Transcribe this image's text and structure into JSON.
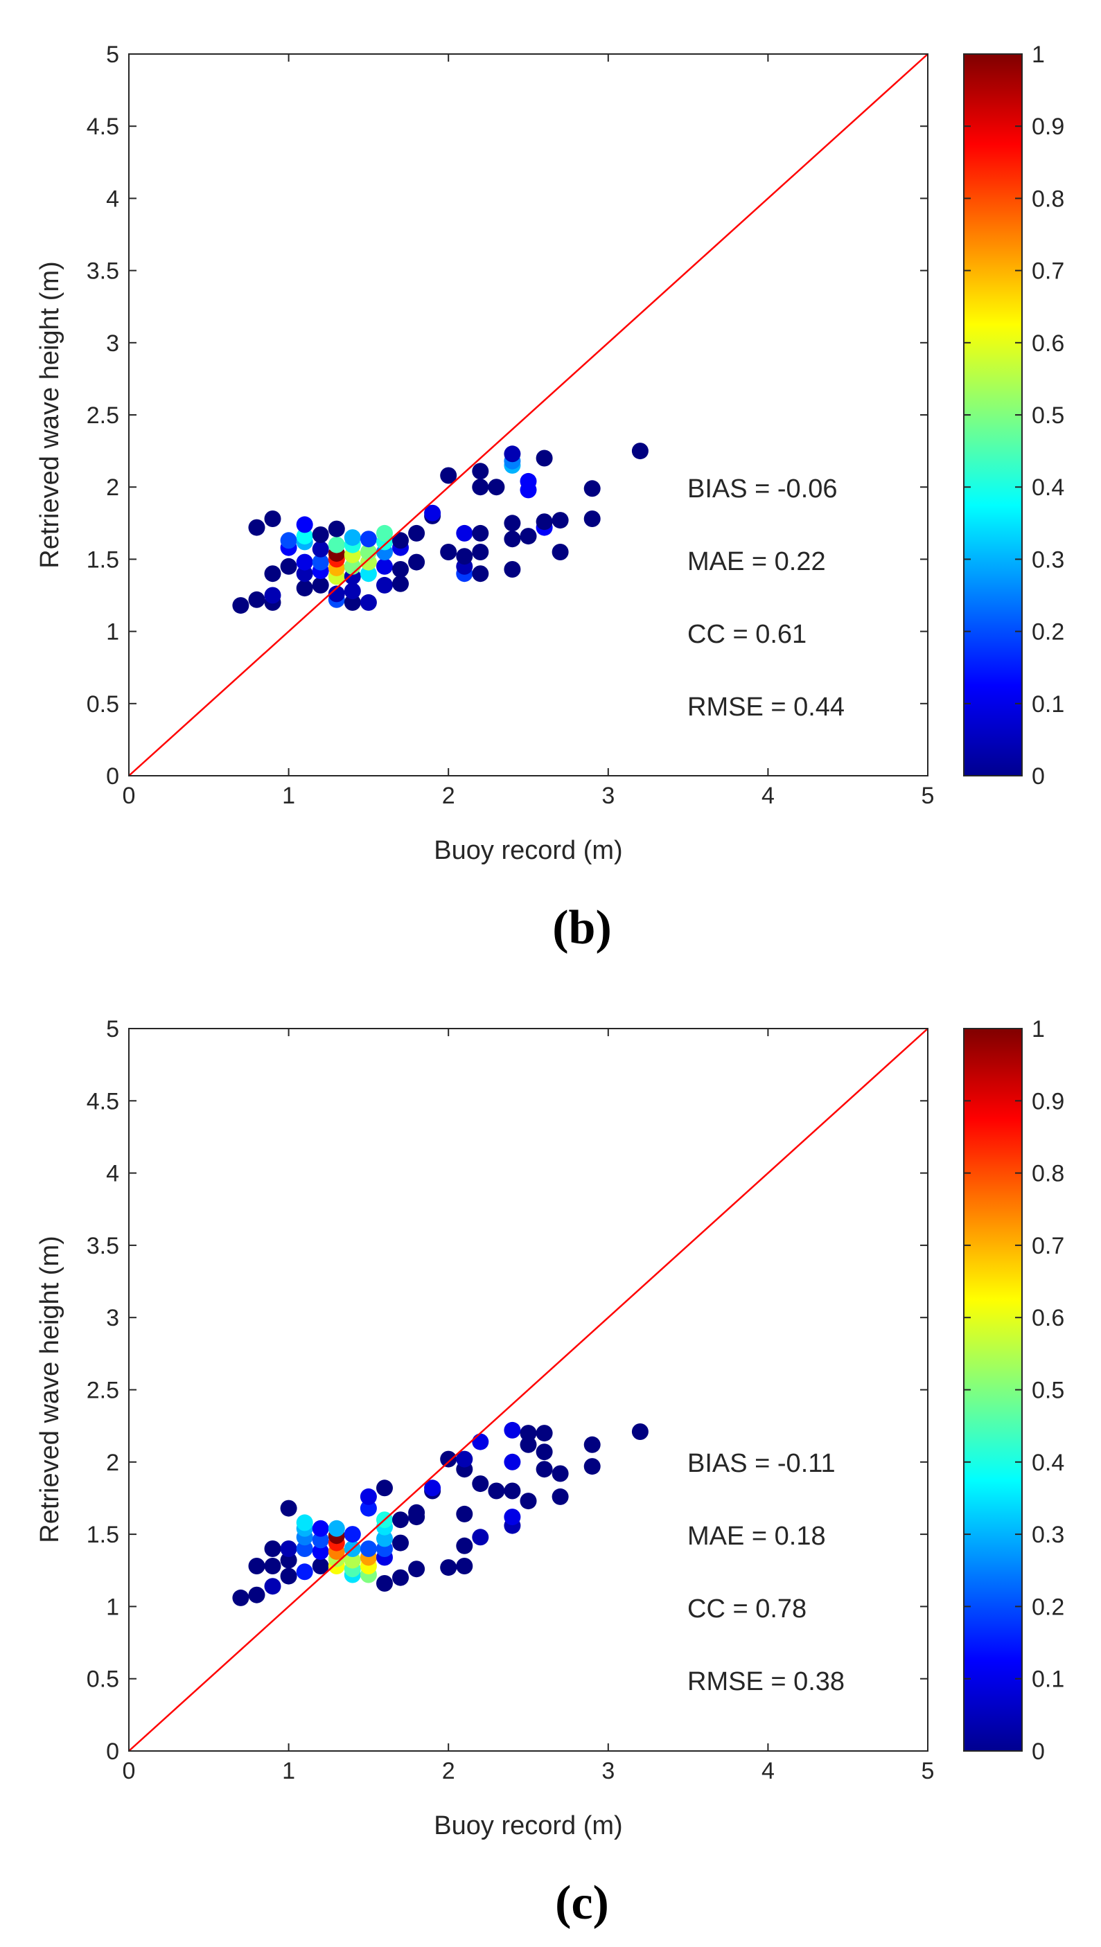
{
  "colors": {
    "axis": "#262626",
    "identity_line": "#ff0000",
    "background": "#ffffff"
  },
  "colorbar": {
    "range": [
      0,
      1
    ],
    "ticks": [
      "0",
      "0.1",
      "0.2",
      "0.3",
      "0.4",
      "0.5",
      "0.6",
      "0.7",
      "0.8",
      "0.9",
      "1"
    ],
    "colormap": "jet"
  },
  "chart_data": [
    {
      "type": "scatter",
      "panel_label": "(b)",
      "xlabel": "Buoy record (m)",
      "ylabel": "Retrieved wave height (m)",
      "xlim": [
        0,
        5
      ],
      "ylim": [
        0,
        5
      ],
      "xticks": [
        "0",
        "1",
        "2",
        "3",
        "4",
        "5"
      ],
      "yticks": [
        "0",
        "0.5",
        "1",
        "1.5",
        "2",
        "2.5",
        "3",
        "3.5",
        "4",
        "4.5",
        "5"
      ],
      "identity_line": true,
      "grid": false,
      "stats": [
        "BIAS = -0.06",
        "MAE = 0.22",
        "CC = 0.61",
        "RMSE = 0.44"
      ],
      "points": [
        [
          0.7,
          1.18,
          0
        ],
        [
          0.8,
          1.22,
          0
        ],
        [
          0.8,
          1.72,
          0
        ],
        [
          0.9,
          1.2,
          0
        ],
        [
          0.9,
          1.25,
          0.05
        ],
        [
          0.9,
          1.4,
          0
        ],
        [
          0.9,
          1.78,
          0
        ],
        [
          1.0,
          1.45,
          0
        ],
        [
          1.0,
          1.58,
          0.12
        ],
        [
          1.0,
          1.63,
          0.2
        ],
        [
          1.1,
          1.3,
          0
        ],
        [
          1.1,
          1.4,
          0.05
        ],
        [
          1.1,
          1.48,
          0.1
        ],
        [
          1.1,
          1.62,
          0.3
        ],
        [
          1.1,
          1.66,
          0.38
        ],
        [
          1.1,
          1.74,
          0.12
        ],
        [
          1.2,
          1.32,
          0
        ],
        [
          1.2,
          1.42,
          0.12
        ],
        [
          1.2,
          1.48,
          0.2
        ],
        [
          1.2,
          1.57,
          0.05
        ],
        [
          1.2,
          1.67,
          0
        ],
        [
          1.3,
          1.22,
          0.2
        ],
        [
          1.3,
          1.26,
          0.05
        ],
        [
          1.3,
          1.38,
          0.58
        ],
        [
          1.3,
          1.44,
          0.7
        ],
        [
          1.3,
          1.5,
          0.85
        ],
        [
          1.3,
          1.54,
          1.0
        ],
        [
          1.3,
          1.6,
          0.45
        ],
        [
          1.3,
          1.71,
          0
        ],
        [
          1.4,
          1.2,
          0
        ],
        [
          1.4,
          1.28,
          0.05
        ],
        [
          1.4,
          1.38,
          0.05
        ],
        [
          1.4,
          1.45,
          0.5
        ],
        [
          1.4,
          1.53,
          0.58
        ],
        [
          1.4,
          1.6,
          0.4
        ],
        [
          1.4,
          1.65,
          0.3
        ],
        [
          1.5,
          1.2,
          0.05
        ],
        [
          1.5,
          1.4,
          0.35
        ],
        [
          1.5,
          1.48,
          0.55
        ],
        [
          1.5,
          1.55,
          0.5
        ],
        [
          1.5,
          1.64,
          0.18
        ],
        [
          1.6,
          1.32,
          0.05
        ],
        [
          1.6,
          1.45,
          0.1
        ],
        [
          1.6,
          1.55,
          0.25
        ],
        [
          1.6,
          1.62,
          0.4
        ],
        [
          1.6,
          1.68,
          0.45
        ],
        [
          1.7,
          1.33,
          0
        ],
        [
          1.7,
          1.43,
          0
        ],
        [
          1.7,
          1.58,
          0.1
        ],
        [
          1.7,
          1.63,
          0
        ],
        [
          1.8,
          1.48,
          0
        ],
        [
          1.8,
          1.68,
          0
        ],
        [
          1.9,
          1.8,
          0
        ],
        [
          1.9,
          1.82,
          0.1
        ],
        [
          2.0,
          1.55,
          0
        ],
        [
          2.0,
          2.08,
          0
        ],
        [
          2.1,
          1.4,
          0.18
        ],
        [
          2.1,
          1.45,
          0.05
        ],
        [
          2.1,
          1.52,
          0
        ],
        [
          2.1,
          1.68,
          0.1
        ],
        [
          2.2,
          1.4,
          0
        ],
        [
          2.2,
          1.55,
          0
        ],
        [
          2.2,
          1.68,
          0
        ],
        [
          2.2,
          2.0,
          0
        ],
        [
          2.2,
          2.11,
          0
        ],
        [
          2.3,
          2.0,
          0
        ],
        [
          2.4,
          1.43,
          0
        ],
        [
          2.4,
          1.64,
          0
        ],
        [
          2.4,
          1.75,
          0
        ],
        [
          2.4,
          2.15,
          0.3
        ],
        [
          2.4,
          2.18,
          0.25
        ],
        [
          2.4,
          2.23,
          0.05
        ],
        [
          2.5,
          1.66,
          0
        ],
        [
          2.5,
          1.98,
          0.12
        ],
        [
          2.5,
          2.04,
          0.12
        ],
        [
          2.6,
          1.72,
          0.12
        ],
        [
          2.6,
          1.76,
          0
        ],
        [
          2.6,
          2.2,
          0
        ],
        [
          2.7,
          1.55,
          0
        ],
        [
          2.7,
          1.77,
          0
        ],
        [
          2.9,
          1.78,
          0
        ],
        [
          2.9,
          1.99,
          0
        ],
        [
          3.2,
          2.25,
          0
        ]
      ]
    },
    {
      "type": "scatter",
      "panel_label": "(c)",
      "xlabel": "Buoy record (m)",
      "ylabel": "Retrieved wave height (m)",
      "xlim": [
        0,
        5
      ],
      "ylim": [
        0,
        5
      ],
      "xticks": [
        "0",
        "1",
        "2",
        "3",
        "4",
        "5"
      ],
      "yticks": [
        "0",
        "0.5",
        "1",
        "1.5",
        "2",
        "2.5",
        "3",
        "3.5",
        "4",
        "4.5",
        "5"
      ],
      "identity_line": true,
      "grid": false,
      "stats": [
        "BIAS = -0.11",
        "MAE = 0.18",
        "CC = 0.78",
        "RMSE = 0.38"
      ],
      "points": [
        [
          0.7,
          1.06,
          0
        ],
        [
          0.8,
          1.08,
          0
        ],
        [
          0.8,
          1.28,
          0
        ],
        [
          0.9,
          1.14,
          0.05
        ],
        [
          0.9,
          1.28,
          0
        ],
        [
          0.9,
          1.4,
          0
        ],
        [
          1.0,
          1.21,
          0
        ],
        [
          1.0,
          1.32,
          0
        ],
        [
          1.0,
          1.4,
          0.05
        ],
        [
          1.0,
          1.68,
          0
        ],
        [
          1.1,
          1.24,
          0.15
        ],
        [
          1.1,
          1.4,
          0.2
        ],
        [
          1.1,
          1.48,
          0.25
        ],
        [
          1.1,
          1.54,
          0.3
        ],
        [
          1.1,
          1.58,
          0.35
        ],
        [
          1.2,
          1.28,
          0
        ],
        [
          1.2,
          1.38,
          0.12
        ],
        [
          1.2,
          1.46,
          0.2
        ],
        [
          1.2,
          1.54,
          0.12
        ],
        [
          1.3,
          1.28,
          0.62
        ],
        [
          1.3,
          1.33,
          0.55
        ],
        [
          1.3,
          1.38,
          0.75
        ],
        [
          1.3,
          1.44,
          0.85
        ],
        [
          1.3,
          1.49,
          1.0
        ],
        [
          1.3,
          1.54,
          0.3
        ],
        [
          1.4,
          1.22,
          0.35
        ],
        [
          1.4,
          1.26,
          0.45
        ],
        [
          1.4,
          1.32,
          0.55
        ],
        [
          1.4,
          1.4,
          0.3
        ],
        [
          1.4,
          1.5,
          0.15
        ],
        [
          1.5,
          1.22,
          0.5
        ],
        [
          1.5,
          1.28,
          0.62
        ],
        [
          1.5,
          1.34,
          0.72
        ],
        [
          1.5,
          1.4,
          0.2
        ],
        [
          1.5,
          1.68,
          0.15
        ],
        [
          1.5,
          1.76,
          0.1
        ],
        [
          1.6,
          1.16,
          0
        ],
        [
          1.6,
          1.34,
          0.1
        ],
        [
          1.6,
          1.4,
          0.2
        ],
        [
          1.6,
          1.47,
          0.3
        ],
        [
          1.6,
          1.55,
          0.35
        ],
        [
          1.6,
          1.6,
          0.4
        ],
        [
          1.6,
          1.82,
          0
        ],
        [
          1.7,
          1.2,
          0
        ],
        [
          1.7,
          1.44,
          0
        ],
        [
          1.7,
          1.6,
          0
        ],
        [
          1.8,
          1.26,
          0
        ],
        [
          1.8,
          1.62,
          0
        ],
        [
          1.8,
          1.65,
          0
        ],
        [
          1.9,
          1.8,
          0
        ],
        [
          1.9,
          1.82,
          0.1
        ],
        [
          2.0,
          1.27,
          0
        ],
        [
          2.0,
          2.02,
          0
        ],
        [
          2.1,
          1.28,
          0
        ],
        [
          2.1,
          1.42,
          0
        ],
        [
          2.1,
          1.64,
          0
        ],
        [
          2.1,
          1.95,
          0
        ],
        [
          2.1,
          2.02,
          0.05
        ],
        [
          2.2,
          1.48,
          0.05
        ],
        [
          2.2,
          1.85,
          0
        ],
        [
          2.2,
          2.14,
          0.1
        ],
        [
          2.3,
          1.8,
          0
        ],
        [
          2.4,
          1.56,
          0.05
        ],
        [
          2.4,
          1.62,
          0.1
        ],
        [
          2.4,
          1.8,
          0
        ],
        [
          2.4,
          2.0,
          0.1
        ],
        [
          2.4,
          2.22,
          0.1
        ],
        [
          2.5,
          1.73,
          0
        ],
        [
          2.5,
          2.12,
          0
        ],
        [
          2.5,
          2.2,
          0
        ],
        [
          2.6,
          1.95,
          0
        ],
        [
          2.6,
          2.07,
          0
        ],
        [
          2.6,
          2.2,
          0
        ],
        [
          2.7,
          1.76,
          0
        ],
        [
          2.7,
          1.92,
          0
        ],
        [
          2.9,
          1.97,
          0
        ],
        [
          2.9,
          2.12,
          0
        ],
        [
          3.2,
          2.21,
          0
        ]
      ]
    }
  ]
}
